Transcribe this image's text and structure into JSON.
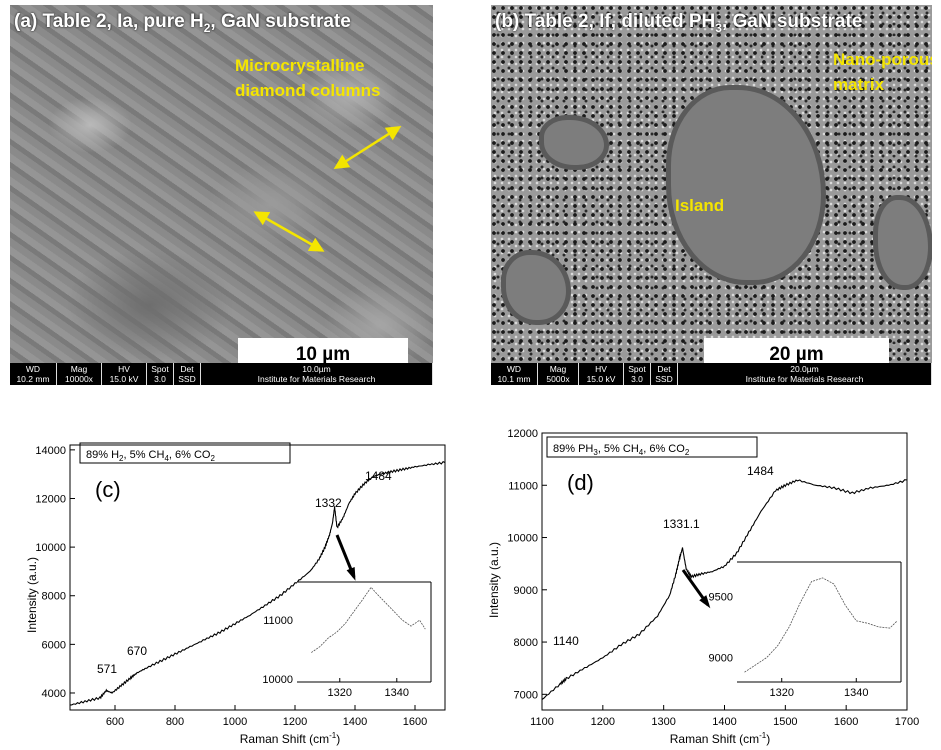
{
  "panel_a": {
    "title": "(a) Table 2, Ia, pure H",
    "title_sub": "2",
    "title_tail": ", GaN substrate",
    "label": "Microcrystalline\ndiamond columns",
    "scalebar": "10 µm",
    "info": {
      "wd_h": "WD",
      "wd_v": "10.2 mm",
      "mag_h": "Mag",
      "mag_v": "10000x",
      "hv_h": "HV",
      "hv_v": "15.0 kV",
      "spot_h": "Spot",
      "spot_v": "3.0",
      "det_h": "Det",
      "det_v": "SSD",
      "scale": "10.0µm",
      "institute": "Institute for Materials Research"
    },
    "colors": {
      "annotation": "#f4e500"
    }
  },
  "panel_b": {
    "title": "(b) Table 2, If, diluted PH",
    "title_sub": "3",
    "title_tail": ", GaN substrate",
    "label_matrix": "Nano-porous\nmatrix",
    "label_island": "Island",
    "scalebar": "20 µm",
    "info": {
      "wd_h": "WD",
      "wd_v": "10.1 mm",
      "mag_h": "Mag",
      "mag_v": "5000x",
      "hv_h": "HV",
      "hv_v": "15.0 kV",
      "spot_h": "Spot",
      "spot_v": "3.0",
      "det_h": "Det",
      "det_v": "SSD",
      "scale": "20.0µm",
      "institute": "Institute for Materials Research"
    }
  },
  "chart_data": [
    {
      "type": "line",
      "panel_label": "(c)",
      "legend": {
        "a": "89% H",
        "b": "2",
        "c": ", 5% CH",
        "d": "4",
        "e": ", 6% CO",
        "f": "2"
      },
      "xlabel": "Raman Shift (cm",
      "xlabel_sup": "-1",
      "xlabel_end": ")",
      "ylabel": "Intensity (a.u.)",
      "xlim": [
        450,
        1700
      ],
      "ylim": [
        3300,
        14200
      ],
      "xticks": [
        600,
        800,
        1000,
        1200,
        1400,
        1600
      ],
      "yticks": [
        4000,
        6000,
        8000,
        10000,
        12000,
        14000
      ],
      "series": [
        {
          "x": [
            450,
            500,
            550,
            571,
            590,
            620,
            650,
            670,
            700,
            750,
            800,
            850,
            900,
            950,
            1000,
            1050,
            1100,
            1150,
            1200,
            1250,
            1280,
            1300,
            1315,
            1325,
            1332,
            1340,
            1360,
            1380,
            1400,
            1430,
            1460,
            1484,
            1520,
            1560,
            1600,
            1650,
            1700
          ],
          "y": [
            3500,
            3650,
            3800,
            4100,
            4000,
            4300,
            4600,
            4800,
            5000,
            5300,
            5600,
            5900,
            6200,
            6500,
            6850,
            7200,
            7600,
            8000,
            8500,
            9000,
            9500,
            10000,
            10500,
            11000,
            11650,
            10800,
            11200,
            11800,
            12200,
            12600,
            12900,
            13000,
            13100,
            13200,
            13300,
            13400,
            13480
          ]
        }
      ],
      "annotations": [
        "571",
        "670",
        "1332",
        "1484"
      ],
      "inset": {
        "xticks": [
          "1320",
          "1340"
        ],
        "yticks": [
          "10000",
          "11000"
        ],
        "xlim": [
          1305,
          1352
        ],
        "ylim": [
          9950,
          11650
        ],
        "x": [
          1310,
          1313,
          1316,
          1319,
          1322,
          1325,
          1328,
          1331,
          1333,
          1336,
          1339,
          1342,
          1345,
          1348,
          1350
        ],
        "y": [
          10450,
          10550,
          10700,
          10800,
          10950,
          11150,
          11350,
          11560,
          11450,
          11300,
          11150,
          11000,
          10900,
          11000,
          10850
        ]
      }
    },
    {
      "type": "line",
      "panel_label": "(d)",
      "legend": {
        "a": "89% PH",
        "b": "3",
        "c": ", 5% CH",
        "d": "4",
        "e": ", 6% CO",
        "f": "2"
      },
      "xlabel": "Raman Shift (cm",
      "xlabel_sup": "-1",
      "xlabel_end": ")",
      "ylabel": "Intensity (a.u.)",
      "xlim": [
        1100,
        1700
      ],
      "ylim": [
        6700,
        12000
      ],
      "xticks": [
        1100,
        1200,
        1300,
        1400,
        1500,
        1600,
        1700
      ],
      "yticks": [
        7000,
        8000,
        9000,
        10000,
        11000,
        12000
      ],
      "series": [
        {
          "x": [
            1100,
            1130,
            1140,
            1170,
            1200,
            1230,
            1260,
            1290,
            1310,
            1320,
            1326,
            1331,
            1337,
            1345,
            1360,
            1380,
            1400,
            1420,
            1440,
            1460,
            1484,
            1500,
            1520,
            1550,
            1580,
            1610,
            1640,
            1670,
            1700
          ],
          "y": [
            6900,
            7200,
            7300,
            7500,
            7700,
            7950,
            8150,
            8500,
            8900,
            9300,
            9600,
            9800,
            9400,
            9250,
            9300,
            9350,
            9450,
            9700,
            10100,
            10500,
            10900,
            11000,
            11100,
            11000,
            10950,
            10850,
            10950,
            11000,
            11100
          ]
        }
      ],
      "annotations": [
        "1140",
        "1331.1",
        "1484"
      ],
      "inset": {
        "xticks": [
          "1320",
          "1340"
        ],
        "yticks": [
          "9000",
          "9500"
        ],
        "xlim": [
          1308,
          1352
        ],
        "ylim": [
          8800,
          9780
        ],
        "x": [
          1310,
          1313,
          1316,
          1319,
          1322,
          1325,
          1328,
          1331,
          1334,
          1337,
          1340,
          1343,
          1346,
          1349,
          1351
        ],
        "y": [
          8880,
          8940,
          9000,
          9100,
          9250,
          9450,
          9620,
          9650,
          9600,
          9430,
          9300,
          9280,
          9250,
          9240,
          9300
        ]
      }
    }
  ]
}
